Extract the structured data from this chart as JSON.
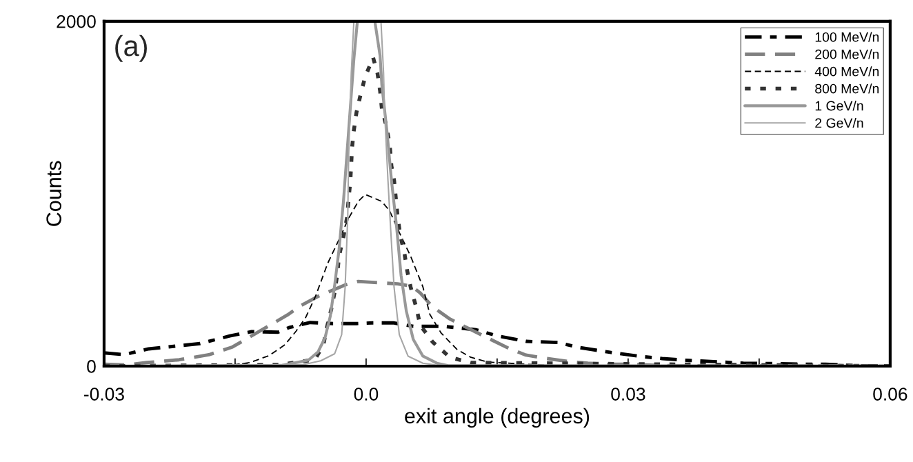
{
  "chart_data": {
    "type": "line",
    "xlabel": "exit angle (degrees)",
    "ylabel": "Counts",
    "annotations": [
      "(a)"
    ],
    "xlim": [
      -0.03,
      0.06
    ],
    "ylim": [
      0,
      2000
    ],
    "xticks": [
      -0.03,
      {
        "value": -0.015,
        "label": null
      },
      {
        "value": 0,
        "label": "0.0"
      },
      {
        "value": 0.015,
        "label": null
      },
      0.03,
      {
        "value": 0.045,
        "label": null
      },
      0.06
    ],
    "yticks": [
      0,
      2000
    ],
    "grid": false,
    "legend": "top right",
    "series": [
      {
        "name": "100 MeV/n",
        "color": "#000000",
        "line_style": "dashed",
        "x": [
          -0.03,
          -0.0277,
          -0.0249,
          -0.0224,
          -0.019,
          -0.0156,
          -0.0131,
          -0.0101,
          -0.0088,
          -0.0064,
          -0.0038,
          -0.0011,
          0.0007,
          0.0031,
          0.0054,
          0.0088,
          0.0126,
          0.0149,
          0.0183,
          0.022,
          0.0244,
          0.0278,
          0.0313,
          0.0339,
          0.037,
          0.0407,
          0.0432,
          0.0465,
          0.0502,
          0.0526,
          0.056,
          0.06
        ],
        "values": [
          77,
          67,
          100,
          113,
          131,
          175,
          200,
          197,
          224,
          253,
          247,
          247,
          251,
          251,
          231,
          231,
          211,
          177,
          144,
          137,
          108,
          81,
          57,
          44,
          33,
          24,
          17,
          15,
          11,
          11,
          3,
          0
        ]
      },
      {
        "name": "200 MeV/n",
        "color": "#808080",
        "line_style": "dashed",
        "x": [
          -0.03,
          -0.0275,
          -0.0251,
          -0.0214,
          -0.018,
          -0.0153,
          -0.0117,
          -0.009,
          -0.0074,
          -0.0054,
          -0.0024,
          -0.0009,
          0.0013,
          0.0036,
          0.0052,
          0.0062,
          0.0076,
          0.0096,
          0.0115,
          0.0139,
          0.0163,
          0.0183,
          0.0207,
          0.0236,
          0.0254,
          0.0276,
          0.0302,
          0.0339,
          0.06
        ],
        "values": [
          11,
          7,
          21,
          37,
          66,
          111,
          217,
          297,
          353,
          407,
          471,
          491,
          484,
          477,
          464,
          424,
          344,
          273,
          224,
          164,
          104,
          64,
          44,
          24,
          17,
          11,
          11,
          3,
          0
        ]
      },
      {
        "name": "400 MeV/n",
        "color": "#000000",
        "line_style": "dashed",
        "x": [
          -0.03,
          -0.0182,
          -0.0151,
          -0.0133,
          -0.0111,
          -0.0093,
          -0.008,
          -0.0069,
          -0.0058,
          -0.0044,
          -0.0031,
          -0.002,
          -0.0009,
          -0.0001,
          0.0018,
          0.0027,
          0.0038,
          0.0051,
          0.0065,
          0.0073,
          0.0086,
          0.0104,
          0.012,
          0.0139,
          0.0163,
          0.0183,
          0.0236,
          0.06
        ],
        "values": [
          0,
          0,
          8,
          21,
          61,
          124,
          204,
          284,
          404,
          596,
          734,
          858,
          955,
          996,
          955,
          900,
          775,
          637,
          460,
          300,
          191,
          97,
          51,
          24,
          17,
          11,
          0,
          0
        ]
      },
      {
        "name": "800 MeV/n",
        "color": "#333333",
        "line_style": "dotted",
        "x": [
          -0.03,
          -0.0098,
          -0.0074,
          -0.0059,
          -0.0059,
          -0.0049,
          -0.0045,
          -0.004,
          -0.0036,
          -0.0033,
          -0.0031,
          -0.0026,
          -0.0022,
          -0.0018,
          -0.0016,
          -0.0014,
          -0.0011,
          -0.0006,
          -0.0001,
          0.0008,
          0.0013,
          0.0016,
          0.0018,
          0.0023,
          0.0027,
          0.0029,
          0.0032,
          0.0036,
          0.0039,
          0.0044,
          0.0047,
          0.0051,
          0.0057,
          0.0062,
          0.0076,
          0.0096,
          0.012,
          0.06
        ],
        "values": [
          0,
          8,
          27,
          37,
          37,
          120,
          223,
          327,
          430,
          534,
          637,
          748,
          858,
          1079,
          1272,
          1368,
          1472,
          1582,
          1679,
          1789,
          1699,
          1596,
          1493,
          1396,
          1286,
          1161,
          1079,
          872,
          761,
          651,
          554,
          458,
          348,
          237,
          141,
          51,
          20,
          0
        ]
      },
      {
        "name": "1 GeV/n",
        "color": "#999999",
        "line_style": "solid",
        "x": [
          -0.03,
          -0.0096,
          -0.008,
          -0.0066,
          -0.0055,
          -0.0047,
          -0.0041,
          -0.0036,
          -0.0031,
          -0.0026,
          -0.0022,
          -0.0018,
          -0.0014,
          -0.001,
          0.001,
          0.0016,
          0.0018,
          0.0024,
          0.0029,
          0.0035,
          0.004,
          0.0046,
          0.0054,
          0.0065,
          0.0081,
          0.0094,
          0.06
        ],
        "values": [
          0,
          5,
          21,
          35,
          83,
          165,
          290,
          469,
          676,
          952,
          1228,
          1504,
          1780,
          2000,
          2000,
          1800,
          1631,
          1355,
          1079,
          803,
          527,
          320,
          155,
          58,
          17,
          3,
          0
        ]
      },
      {
        "name": "2 GeV/n",
        "color": "#a6a6a6",
        "line_style": "solid",
        "x": [
          -0.03,
          -0.0071,
          -0.0052,
          -0.0036,
          -0.0028,
          -0.0024,
          -0.0021,
          -0.002,
          -0.0017,
          -0.0014,
          0.0017,
          0.002,
          0.0021,
          0.0025,
          0.0028,
          0.0032,
          0.0038,
          0.0048,
          0.0065,
          0.0081,
          0.06
        ],
        "values": [
          0,
          10,
          31,
          72,
          182,
          458,
          872,
          1217,
          1700,
          2000,
          2000,
          1700,
          1493,
          1079,
          803,
          458,
          182,
          58,
          17,
          6,
          0
        ]
      }
    ]
  }
}
